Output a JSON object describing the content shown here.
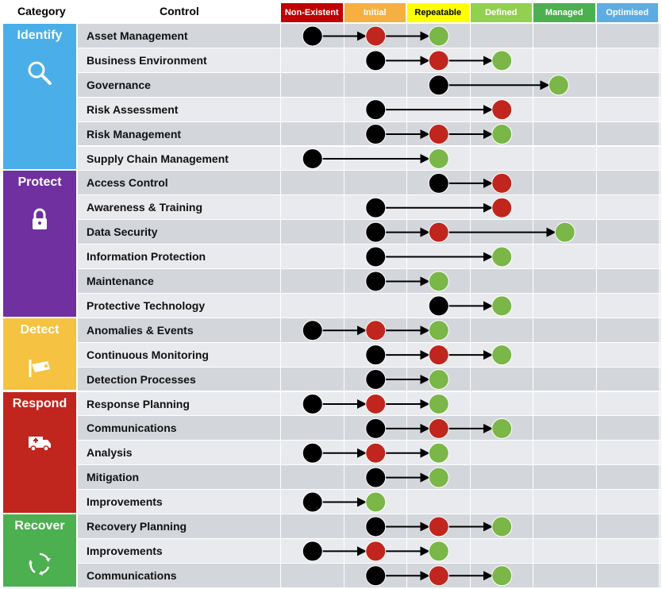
{
  "header": {
    "category_label": "Category",
    "control_label": "Control"
  },
  "levels": [
    {
      "label": "Non-Existent",
      "color": "#c00000",
      "text_color": "#ffffff"
    },
    {
      "label": "Initial",
      "color": "#f5b041",
      "text_color": "#ffffff"
    },
    {
      "label": "Repeatable",
      "color": "#ffff00",
      "text_color": "#000000"
    },
    {
      "label": "Defined",
      "color": "#92d050",
      "text_color": "#ffffff"
    },
    {
      "label": "Managed",
      "color": "#4caf50",
      "text_color": "#ffffff"
    },
    {
      "label": "Optimised",
      "color": "#5dade2",
      "text_color": "#ffffff"
    }
  ],
  "categories": [
    {
      "name": "Identify",
      "color": "#4aaee8",
      "icon": "search-icon"
    },
    {
      "name": "Protect",
      "color": "#7030a0",
      "icon": "lock-icon"
    },
    {
      "name": "Detect",
      "color": "#f5c242",
      "icon": "camera-icon"
    },
    {
      "name": "Respond",
      "color": "#c0261e",
      "icon": "ambulance-icon"
    },
    {
      "name": "Recover",
      "color": "#4caf50",
      "icon": "cycle-icon"
    }
  ],
  "legend": {
    "current_color": "#000000",
    "interim_color": "#c0261e",
    "target_color": "#7ab648"
  },
  "chart_data": {
    "type": "dot-arrow",
    "x_levels": [
      "Non-Existent",
      "Initial",
      "Repeatable",
      "Defined",
      "Managed",
      "Optimised"
    ],
    "rows": [
      {
        "category": "Identify",
        "control": "Asset Management",
        "start": 0.5,
        "mid": 1.5,
        "end": 2.5
      },
      {
        "category": "Identify",
        "control": "Business Environment",
        "start": 1.5,
        "mid": 2.5,
        "end": 3.5
      },
      {
        "category": "Identify",
        "control": "Governance",
        "start": 2.5,
        "mid": null,
        "end": 4.4
      },
      {
        "category": "Identify",
        "control": "Risk Assessment",
        "start": 1.5,
        "mid": null,
        "end": 3.5,
        "end_color": "interim"
      },
      {
        "category": "Identify",
        "control": "Risk Management",
        "start": 1.5,
        "mid": 2.5,
        "end": 3.5
      },
      {
        "category": "Identify",
        "control": "Supply Chain Management",
        "start": 0.5,
        "mid": null,
        "end": 2.5
      },
      {
        "category": "Protect",
        "control": "Access Control",
        "start": 2.5,
        "mid": null,
        "end": 3.5,
        "end_color": "interim"
      },
      {
        "category": "Protect",
        "control": "Awareness  & Training",
        "start": 1.5,
        "mid": null,
        "end": 3.5,
        "end_color": "interim"
      },
      {
        "category": "Protect",
        "control": "Data Security",
        "start": 1.5,
        "mid": 2.5,
        "end": 4.5
      },
      {
        "category": "Protect",
        "control": "Information Protection",
        "start": 1.5,
        "mid": null,
        "end": 3.5
      },
      {
        "category": "Protect",
        "control": "Maintenance",
        "start": 1.5,
        "mid": null,
        "end": 2.5
      },
      {
        "category": "Protect",
        "control": "Protective Technology",
        "start": 2.5,
        "mid": null,
        "end": 3.5
      },
      {
        "category": "Detect",
        "control": "Anomalies & Events",
        "start": 0.5,
        "mid": 1.5,
        "end": 2.5
      },
      {
        "category": "Detect",
        "control": "Continuous Monitoring",
        "start": 1.5,
        "mid": 2.5,
        "end": 3.5
      },
      {
        "category": "Detect",
        "control": "Detection Processes",
        "start": 1.5,
        "mid": null,
        "end": 2.5
      },
      {
        "category": "Respond",
        "control": "Response Planning",
        "start": 0.5,
        "mid": 1.5,
        "end": 2.5
      },
      {
        "category": "Respond",
        "control": "Communications",
        "start": 1.5,
        "mid": 2.5,
        "end": 3.5
      },
      {
        "category": "Respond",
        "control": "Analysis",
        "start": 0.5,
        "mid": 1.5,
        "end": 2.5
      },
      {
        "category": "Respond",
        "control": "Mitigation",
        "start": 1.5,
        "mid": null,
        "end": 2.5
      },
      {
        "category": "Respond",
        "control": "Improvements",
        "start": 0.5,
        "mid": null,
        "end": 1.5
      },
      {
        "category": "Recover",
        "control": "Recovery Planning",
        "start": 1.5,
        "mid": 2.5,
        "end": 3.5
      },
      {
        "category": "Recover",
        "control": "Improvements",
        "start": 0.5,
        "mid": 1.5,
        "end": 2.5
      },
      {
        "category": "Recover",
        "control": "Communications",
        "start": 1.5,
        "mid": 2.5,
        "end": 3.5
      }
    ]
  }
}
